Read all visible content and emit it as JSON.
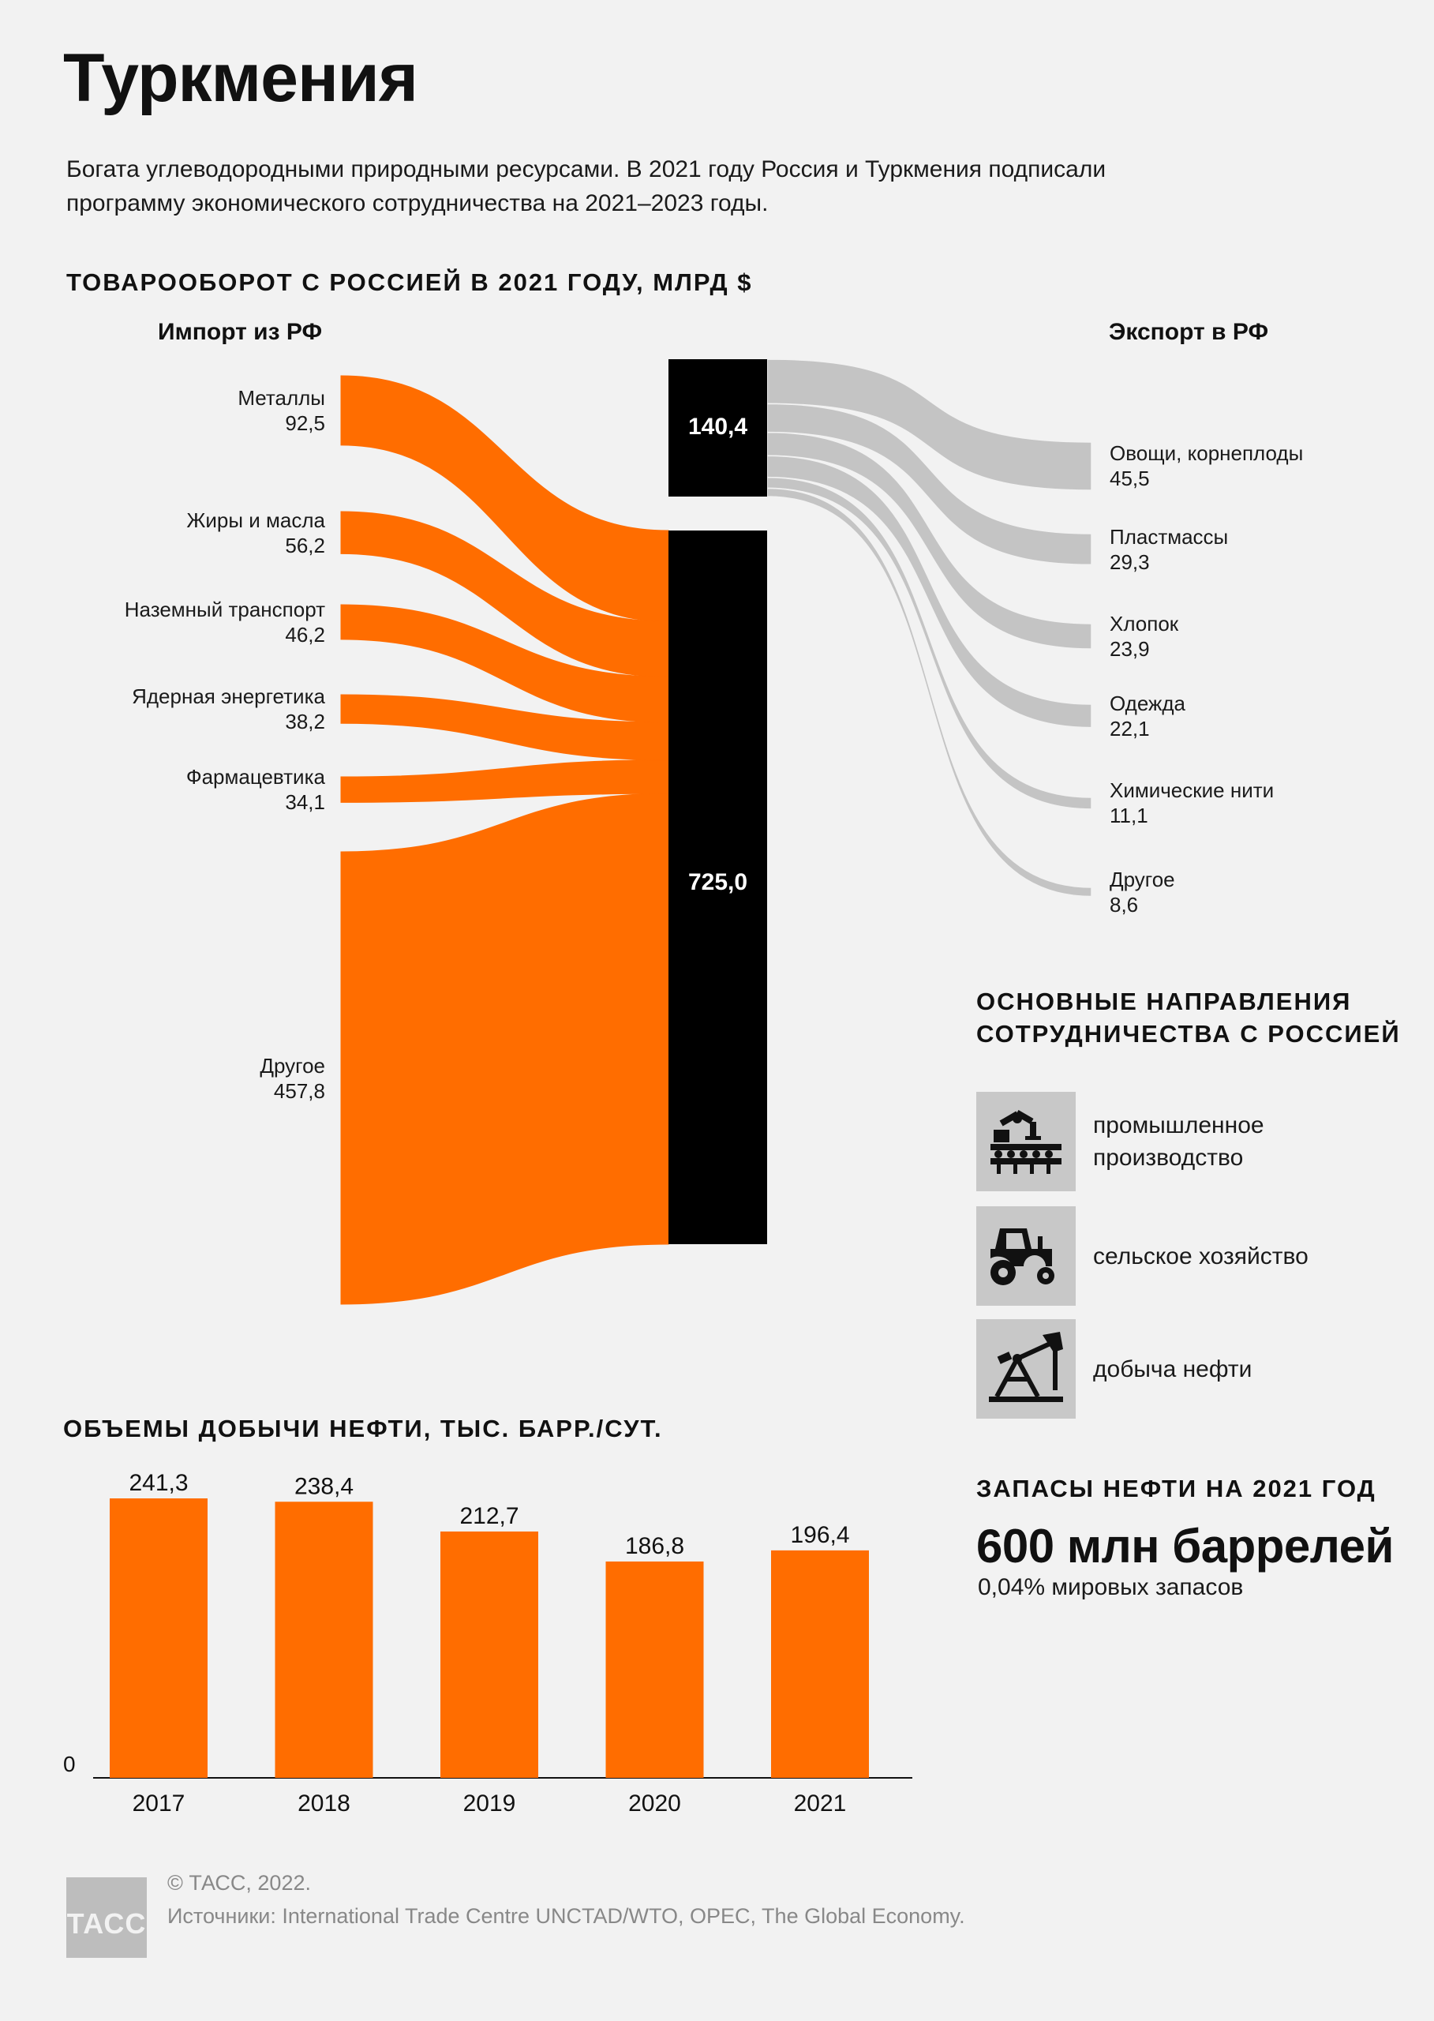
{
  "title": "Туркмения",
  "subtitle": "Богата углеводородными природными ресурсами. В 2021 году Россия и Туркмения подписали программу экономического сотрудничества на 2021–2023 годы.",
  "colors": {
    "accent": "#ff6d00",
    "export": "#c4c4c4",
    "bar": "#000000",
    "background": "#f2f2f2"
  },
  "chart_data": [
    {
      "type": "sankey",
      "title": "ТОВАРООБОРОТ С РОССИЕЙ В 2021 ГОДУ, МЛРД $",
      "import_label": "Импорт из РФ",
      "export_label": "Экспорт в РФ",
      "import_total": "725,0",
      "export_total": "140,4",
      "imports": [
        {
          "name": "Металлы",
          "value": "92,5",
          "num": 92.5
        },
        {
          "name": "Жиры и масла",
          "value": "56,2",
          "num": 56.2
        },
        {
          "name": "Наземный транспорт",
          "value": "46,2",
          "num": 46.2
        },
        {
          "name": "Ядерная энергетика",
          "value": "38,2",
          "num": 38.2
        },
        {
          "name": "Фармацевтика",
          "value": "34,1",
          "num": 34.1
        },
        {
          "name": "Другое",
          "value": "457,8",
          "num": 457.8
        }
      ],
      "exports": [
        {
          "name": "Овощи, корнеплоды",
          "value": "45,5",
          "num": 45.5
        },
        {
          "name": "Пластмассы",
          "value": "29,3",
          "num": 29.3
        },
        {
          "name": "Хлопок",
          "value": "23,9",
          "num": 23.9
        },
        {
          "name": "Одежда",
          "value": "22,1",
          "num": 22.1
        },
        {
          "name": "Химические нити",
          "value": "11,1",
          "num": 11.1
        },
        {
          "name": "Другое",
          "value": "8,6",
          "num": 8.6
        }
      ]
    },
    {
      "type": "bar",
      "title": "ОБЪЕМЫ ДОБЫЧИ НЕФТИ, ТЫС. БАРР./СУТ.",
      "categories": [
        "2017",
        "2018",
        "2019",
        "2020",
        "2021"
      ],
      "values": [
        241.3,
        238.4,
        212.7,
        186.8,
        196.4
      ],
      "value_labels": [
        "241,3",
        "238,4",
        "212,7",
        "186,8",
        "196,4"
      ],
      "zero_label": "0",
      "ylim": [
        0,
        241.3
      ]
    }
  ],
  "cooperation": {
    "title": "ОСНОВНЫЕ НАПРАВЛЕНИЯ СОТРУДНИЧЕСТВА С РОССИЕЙ",
    "items": [
      {
        "icon": "industrial-robot-icon",
        "label": "промышленное производство"
      },
      {
        "icon": "tractor-icon",
        "label": "сельское хозяйство"
      },
      {
        "icon": "oil-pump-icon",
        "label": "добыча нефти"
      }
    ]
  },
  "reserves": {
    "title": "ЗАПАСЫ НЕФТИ НА 2021 ГОД",
    "value": "600 млн баррелей",
    "share": "0,04% мировых запасов"
  },
  "footer": {
    "logo": "ТАСС",
    "copyright": "© ТАСС, 2022.",
    "sources": "Источники: International Trade Centre UNCTAD/WTO, OPEC, The Global Economy."
  }
}
